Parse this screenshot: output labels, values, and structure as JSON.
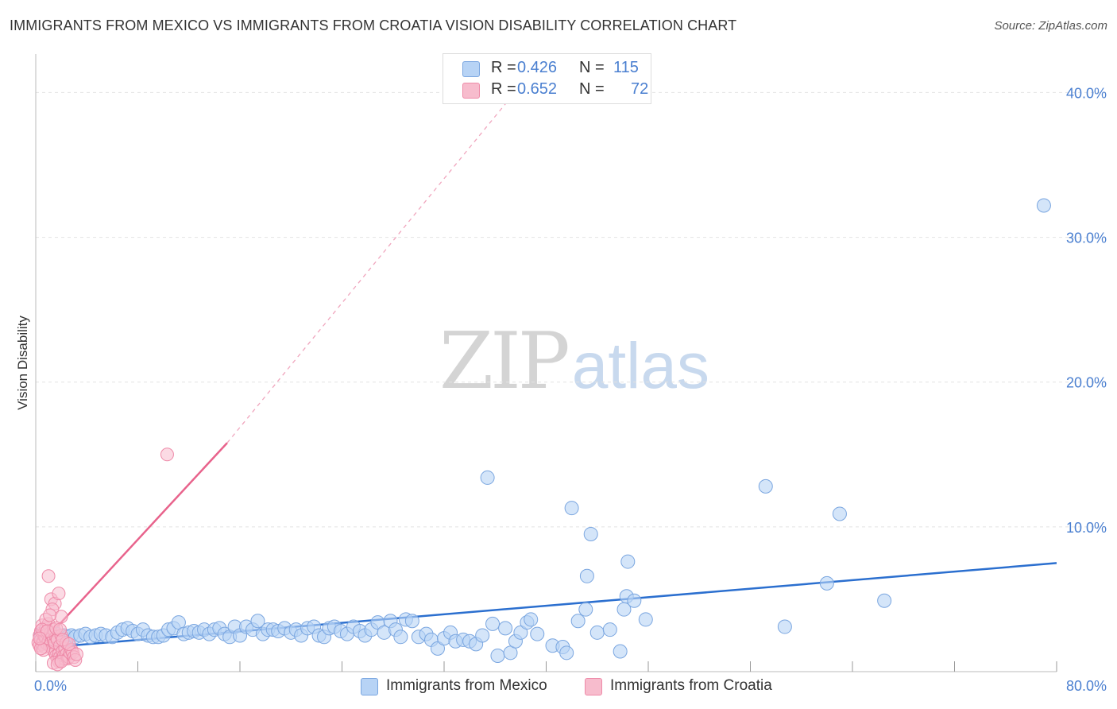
{
  "title": "IMMIGRANTS FROM MEXICO VS IMMIGRANTS FROM CROATIA VISION DISABILITY CORRELATION CHART",
  "source": "Source: ZipAtlas.com",
  "watermark": {
    "part1": "ZIP",
    "part2": "atlas"
  },
  "legend": {
    "mexico": {
      "r_label": "R =",
      "r_value": "0.426",
      "n_label": "N =",
      "n_value": "115"
    },
    "croatia": {
      "r_label": "R =",
      "r_value": "0.652",
      "n_label": "N =",
      "n_value": "72"
    }
  },
  "bottom_legend": {
    "mexico": "Immigrants from Mexico",
    "croatia": "Immigrants from Croatia"
  },
  "colors": {
    "mexico_fill": "#b7d3f5",
    "mexico_stroke": "#7aa6e0",
    "mexico_line": "#2b6fcf",
    "croatia_fill": "#f7bccd",
    "croatia_stroke": "#ee8aa8",
    "croatia_line": "#e8638c",
    "tick": "#4a7fd0",
    "grid": "#e2e2e2"
  },
  "chart_data": {
    "type": "scatter",
    "title": "IMMIGRANTS FROM MEXICO VS IMMIGRANTS FROM CROATIA VISION DISABILITY CORRELATION CHART",
    "xlabel": "",
    "ylabel": "Vision Disability",
    "xlim": [
      0,
      80
    ],
    "ylim": [
      0,
      42
    ],
    "x_tick_labels": [
      "0.0%",
      "80.0%"
    ],
    "y_ticks": [
      10,
      20,
      30,
      40
    ],
    "y_tick_labels": [
      "10.0%",
      "20.0%",
      "30.0%",
      "40.0%"
    ],
    "x_minor_ticks": [
      0,
      8,
      16,
      24,
      32,
      40,
      48,
      56,
      64,
      72,
      80
    ],
    "grid": true,
    "legend_position": "top-center",
    "series": [
      {
        "name": "Immigrants from Mexico",
        "R": 0.426,
        "N": 115,
        "trend": {
          "x": [
            0,
            80
          ],
          "y": [
            1.6,
            7.5
          ]
        },
        "points": [
          [
            0.4,
            2.6
          ],
          [
            0.6,
            2.4
          ],
          [
            0.8,
            2.7
          ],
          [
            1.0,
            2.5
          ],
          [
            1.2,
            2.3
          ],
          [
            1.4,
            2.5
          ],
          [
            1.6,
            2.6
          ],
          [
            1.9,
            2.4
          ],
          [
            2.2,
            2.5
          ],
          [
            2.5,
            2.4
          ],
          [
            2.8,
            2.5
          ],
          [
            3.1,
            2.4
          ],
          [
            3.5,
            2.5
          ],
          [
            3.9,
            2.6
          ],
          [
            4.3,
            2.4
          ],
          [
            4.7,
            2.5
          ],
          [
            5.1,
            2.6
          ],
          [
            5.5,
            2.5
          ],
          [
            6.0,
            2.4
          ],
          [
            6.4,
            2.7
          ],
          [
            6.8,
            2.9
          ],
          [
            7.2,
            3.0
          ],
          [
            7.6,
            2.8
          ],
          [
            8.0,
            2.6
          ],
          [
            8.4,
            2.9
          ],
          [
            8.8,
            2.5
          ],
          [
            9.2,
            2.4
          ],
          [
            9.6,
            2.4
          ],
          [
            10.0,
            2.5
          ],
          [
            10.4,
            2.9
          ],
          [
            10.8,
            3.0
          ],
          [
            11.2,
            3.4
          ],
          [
            11.6,
            2.6
          ],
          [
            12.0,
            2.7
          ],
          [
            12.4,
            2.8
          ],
          [
            12.8,
            2.7
          ],
          [
            13.2,
            2.9
          ],
          [
            13.6,
            2.6
          ],
          [
            14.0,
            2.9
          ],
          [
            14.4,
            3.0
          ],
          [
            14.8,
            2.6
          ],
          [
            15.2,
            2.4
          ],
          [
            15.6,
            3.1
          ],
          [
            16.0,
            2.5
          ],
          [
            16.5,
            3.1
          ],
          [
            17.0,
            2.9
          ],
          [
            17.4,
            3.5
          ],
          [
            17.8,
            2.6
          ],
          [
            18.2,
            2.9
          ],
          [
            18.6,
            2.9
          ],
          [
            19.0,
            2.8
          ],
          [
            19.5,
            3.0
          ],
          [
            20.0,
            2.7
          ],
          [
            20.4,
            2.9
          ],
          [
            20.8,
            2.5
          ],
          [
            21.3,
            3.0
          ],
          [
            21.8,
            3.1
          ],
          [
            22.2,
            2.5
          ],
          [
            22.6,
            2.4
          ],
          [
            23.0,
            3.0
          ],
          [
            23.4,
            3.1
          ],
          [
            23.9,
            2.8
          ],
          [
            24.4,
            2.6
          ],
          [
            24.9,
            3.1
          ],
          [
            25.4,
            2.8
          ],
          [
            25.8,
            2.5
          ],
          [
            26.3,
            2.9
          ],
          [
            26.8,
            3.4
          ],
          [
            27.3,
            2.7
          ],
          [
            27.8,
            3.5
          ],
          [
            28.2,
            2.9
          ],
          [
            28.6,
            2.4
          ],
          [
            29.0,
            3.6
          ],
          [
            29.5,
            3.5
          ],
          [
            30.0,
            2.4
          ],
          [
            30.6,
            2.6
          ],
          [
            31.0,
            2.2
          ],
          [
            31.5,
            1.6
          ],
          [
            32.0,
            2.3
          ],
          [
            32.5,
            2.7
          ],
          [
            32.9,
            2.1
          ],
          [
            33.5,
            2.2
          ],
          [
            34.0,
            2.1
          ],
          [
            34.5,
            1.9
          ],
          [
            35.0,
            2.5
          ],
          [
            35.8,
            3.3
          ],
          [
            36.2,
            1.1
          ],
          [
            36.8,
            3.0
          ],
          [
            37.2,
            1.3
          ],
          [
            37.6,
            2.1
          ],
          [
            38.0,
            2.7
          ],
          [
            38.5,
            3.4
          ],
          [
            38.8,
            3.6
          ],
          [
            39.3,
            2.6
          ],
          [
            40.5,
            1.8
          ],
          [
            41.3,
            1.7
          ],
          [
            41.6,
            1.3
          ],
          [
            42.5,
            3.5
          ],
          [
            43.1,
            4.3
          ],
          [
            43.2,
            6.6
          ],
          [
            43.5,
            9.5
          ],
          [
            44.0,
            2.7
          ],
          [
            45.0,
            2.9
          ],
          [
            45.8,
            1.4
          ],
          [
            46.1,
            4.3
          ],
          [
            46.3,
            5.2
          ],
          [
            46.4,
            7.6
          ],
          [
            46.9,
            4.9
          ],
          [
            47.8,
            3.6
          ],
          [
            58.7,
            3.1
          ],
          [
            42.0,
            11.3
          ],
          [
            35.4,
            13.4
          ],
          [
            57.2,
            12.8
          ],
          [
            63.0,
            10.9
          ],
          [
            62.0,
            6.1
          ],
          [
            66.5,
            4.9
          ],
          [
            79.0,
            32.2
          ]
        ]
      },
      {
        "name": "Immigrants from Croatia",
        "R": 0.652,
        "N": 72,
        "trend": {
          "x": [
            0,
            15
          ],
          "y": [
            1.5,
            15.8
          ]
        },
        "trend_extension": {
          "x": [
            15,
            38
          ],
          "y": [
            15.8,
            40.5
          ]
        },
        "points": [
          [
            0.2,
            2.0
          ],
          [
            0.3,
            2.5
          ],
          [
            0.3,
            1.8
          ],
          [
            0.4,
            2.8
          ],
          [
            0.4,
            2.2
          ],
          [
            0.5,
            3.2
          ],
          [
            0.5,
            1.9
          ],
          [
            0.6,
            2.6
          ],
          [
            0.6,
            2.1
          ],
          [
            0.7,
            2.4
          ],
          [
            0.7,
            1.7
          ],
          [
            0.8,
            3.0
          ],
          [
            0.8,
            2.3
          ],
          [
            0.9,
            1.9
          ],
          [
            0.9,
            2.6
          ],
          [
            1.0,
            2.1
          ],
          [
            1.0,
            3.3
          ],
          [
            1.1,
            2.4
          ],
          [
            1.1,
            1.8
          ],
          [
            1.2,
            2.7
          ],
          [
            1.2,
            2.0
          ],
          [
            1.3,
            2.5
          ],
          [
            1.3,
            1.6
          ],
          [
            1.4,
            2.2
          ],
          [
            1.4,
            2.9
          ],
          [
            1.5,
            1.3
          ],
          [
            1.5,
            2.0
          ],
          [
            1.6,
            1.1
          ],
          [
            1.6,
            2.4
          ],
          [
            1.7,
            0.9
          ],
          [
            1.7,
            2.2
          ],
          [
            1.8,
            1.2
          ],
          [
            1.8,
            0.7
          ],
          [
            1.9,
            1.0
          ],
          [
            1.9,
            1.8
          ],
          [
            2.0,
            2.5
          ],
          [
            2.0,
            0.8
          ],
          [
            2.1,
            1.4
          ],
          [
            2.2,
            0.9
          ],
          [
            2.2,
            1.1
          ],
          [
            2.3,
            1.6
          ],
          [
            2.4,
            1.2
          ],
          [
            2.5,
            0.9
          ],
          [
            2.6,
            1.0
          ],
          [
            2.7,
            1.3
          ],
          [
            1.0,
            6.6
          ],
          [
            1.2,
            5.0
          ],
          [
            1.5,
            4.7
          ],
          [
            1.8,
            5.4
          ],
          [
            1.3,
            4.3
          ],
          [
            2.0,
            3.8
          ],
          [
            0.8,
            3.6
          ],
          [
            1.1,
            3.9
          ],
          [
            0.5,
            2.9
          ],
          [
            0.9,
            2.8
          ],
          [
            1.6,
            3.0
          ],
          [
            2.4,
            2.0
          ],
          [
            2.8,
            1.5
          ],
          [
            2.9,
            1.3
          ],
          [
            3.0,
            1.0
          ],
          [
            3.1,
            0.8
          ],
          [
            3.2,
            1.2
          ],
          [
            1.4,
            0.6
          ],
          [
            1.7,
            0.5
          ],
          [
            2.0,
            0.7
          ],
          [
            0.6,
            1.5
          ],
          [
            0.4,
            1.6
          ],
          [
            0.3,
            2.3
          ],
          [
            1.9,
            2.9
          ],
          [
            2.1,
            2.2
          ],
          [
            2.6,
            1.9
          ],
          [
            10.3,
            15.0
          ]
        ]
      }
    ]
  }
}
